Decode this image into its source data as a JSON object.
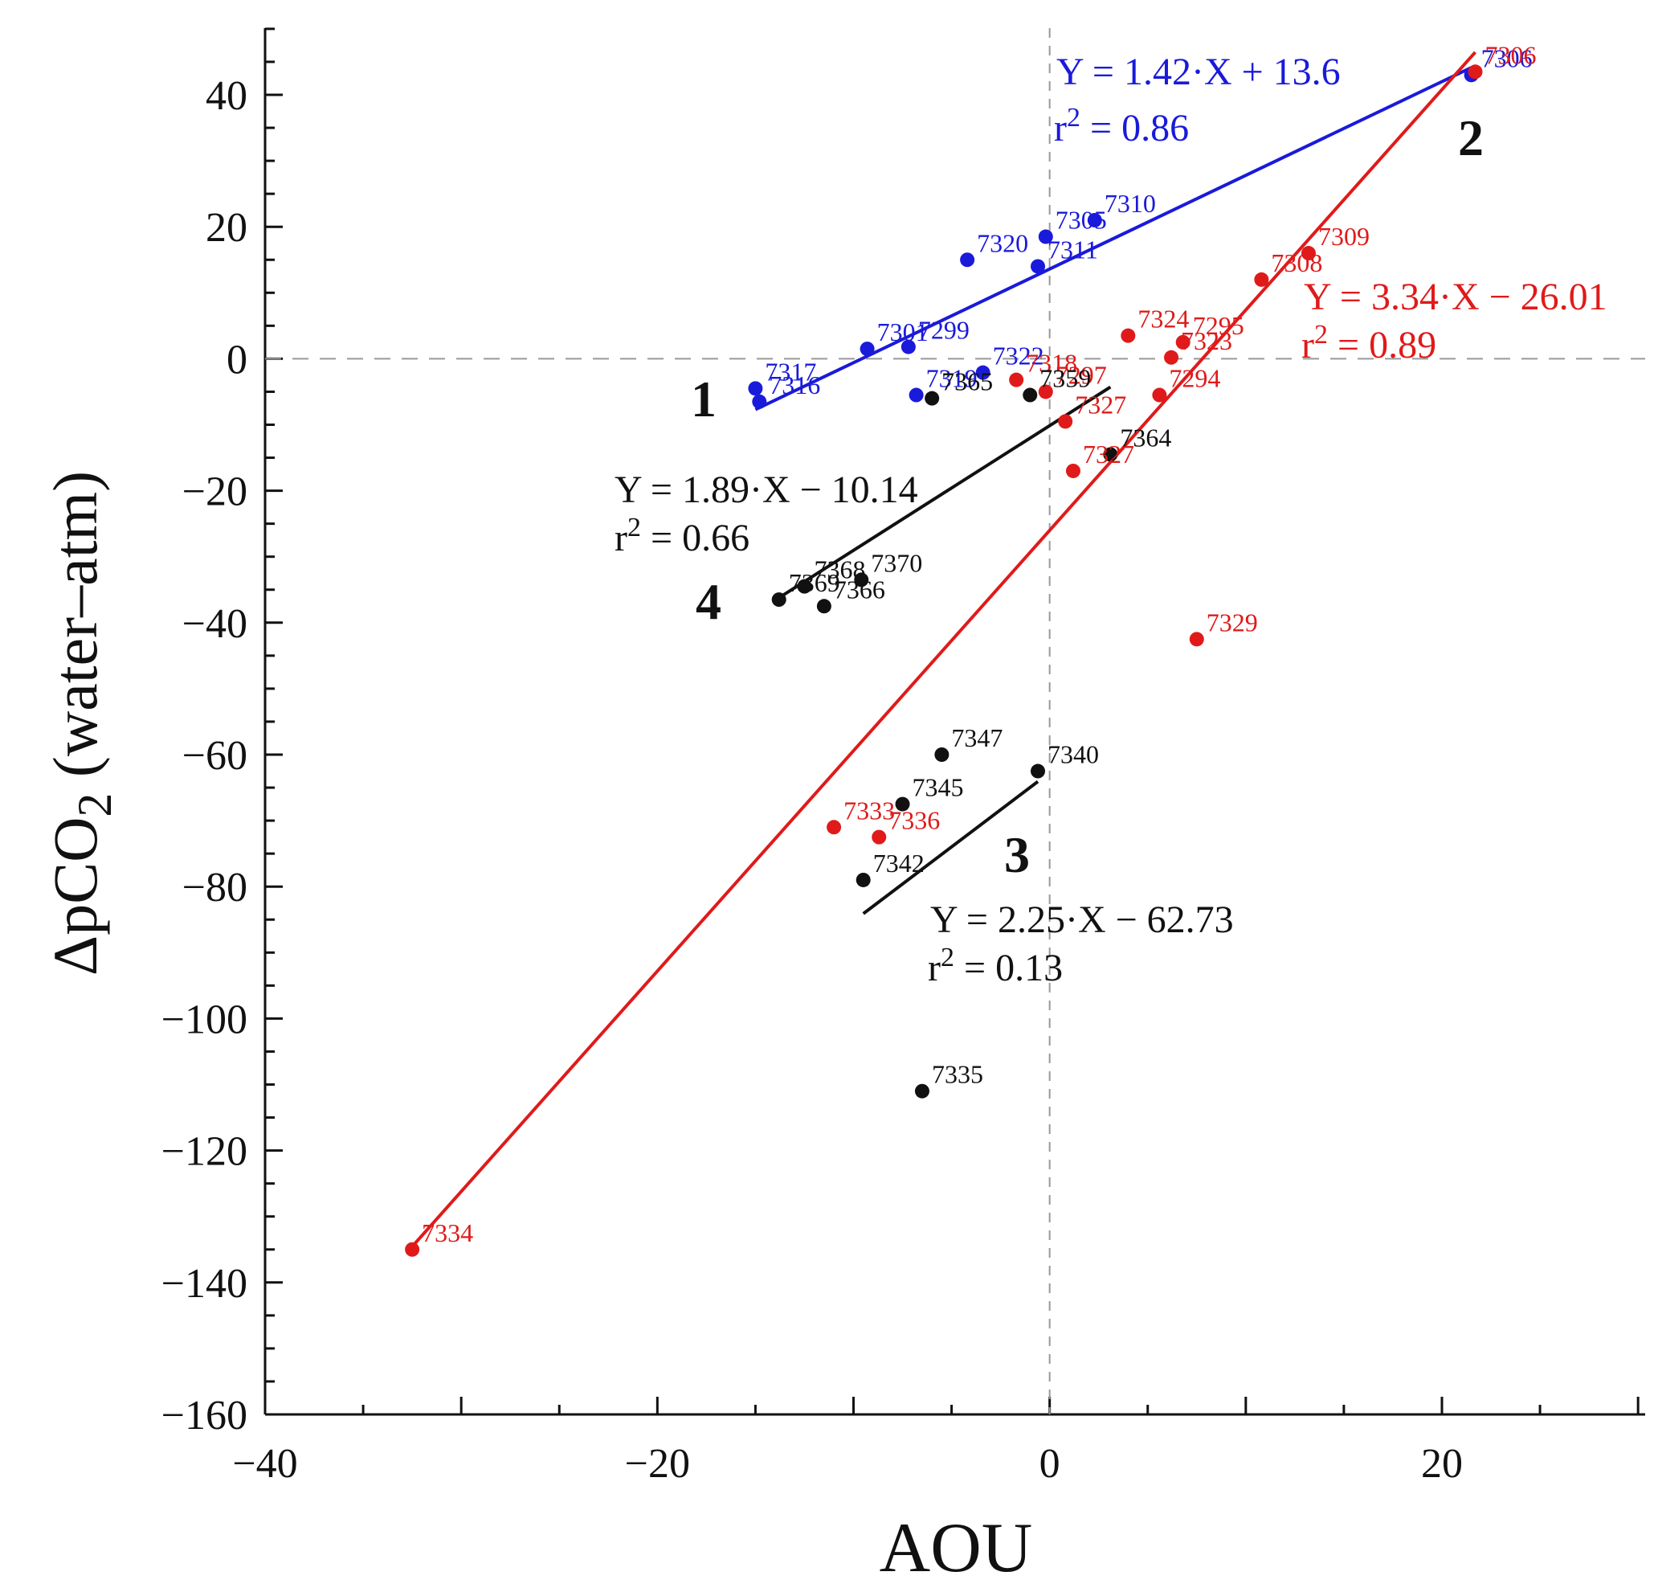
{
  "colors": {
    "blue": "#1a1adb",
    "red": "#e01a1a",
    "black": "#111111",
    "zero_line": "#999999"
  },
  "chart_data": {
    "type": "scatter",
    "title": "",
    "xlabel": "AOU",
    "ylabel_prefix": "ΔpCO",
    "ylabel_sub": "2",
    "ylabel_suffix": " (water–atm)",
    "xlim": [
      -40,
      30
    ],
    "ylim": [
      -160,
      50
    ],
    "x_ticks": [
      -40,
      -20,
      0,
      20
    ],
    "x_tick_labels": [
      "−40",
      "−20",
      "0",
      "20"
    ],
    "y_ticks": [
      40,
      20,
      0,
      -20,
      -40,
      -60,
      -80,
      -100,
      -120,
      -140,
      -160
    ],
    "y_tick_labels": [
      "40",
      "20",
      "0",
      "−20",
      "−40",
      "−60",
      "−80",
      "−100",
      "−120",
      "−140",
      "−160"
    ],
    "zero_lines": {
      "x": 0,
      "y": 0
    },
    "series": [
      {
        "name": "1",
        "color": "blue",
        "points": [
          {
            "x": -15,
            "y": -4.5,
            "label": "7317"
          },
          {
            "x": -14.8,
            "y": -6.5,
            "label": "7316"
          },
          {
            "x": -9.3,
            "y": 1.5,
            "label": "7301"
          },
          {
            "x": -7.2,
            "y": 1.8,
            "label": "7299"
          },
          {
            "x": -6.8,
            "y": -5.5,
            "label": "7319"
          },
          {
            "x": -4.2,
            "y": 15,
            "label": "7320"
          },
          {
            "x": -3.4,
            "y": -2.1,
            "label": "7322"
          },
          {
            "x": -0.6,
            "y": 14,
            "label": "7311"
          },
          {
            "x": -0.2,
            "y": 18.5,
            "label": "7305"
          },
          {
            "x": 2.3,
            "y": 21,
            "label": "7310"
          },
          {
            "x": 21.5,
            "y": 43,
            "label": "7306"
          }
        ],
        "fit": {
          "slope": 1.42,
          "intercept": 13.6,
          "x_range": [
            -15,
            21.5
          ],
          "label": "Y = 1.42·X + 13.6",
          "r2": "0.86"
        }
      },
      {
        "name": "2",
        "color": "red",
        "points": [
          {
            "x": -32.5,
            "y": -135,
            "label": "7334"
          },
          {
            "x": -11,
            "y": -71,
            "label": "7333"
          },
          {
            "x": -8.7,
            "y": -72.5,
            "label": "7336"
          },
          {
            "x": -1.7,
            "y": -3.2,
            "label": "7318"
          },
          {
            "x": -0.2,
            "y": -5,
            "label": "7297"
          },
          {
            "x": 0.8,
            "y": -9.5,
            "label": "7327"
          },
          {
            "x": 1.2,
            "y": -17,
            "label": "7327"
          },
          {
            "x": 4,
            "y": 3.5,
            "label": "7324"
          },
          {
            "x": 5.6,
            "y": -5.5,
            "label": "7294"
          },
          {
            "x": 6.2,
            "y": 0.2,
            "label": "7323"
          },
          {
            "x": 6.8,
            "y": 2.5,
            "label": "7295"
          },
          {
            "x": 7.5,
            "y": -42.5,
            "label": "7329"
          },
          {
            "x": 10.8,
            "y": 12,
            "label": "7308"
          },
          {
            "x": 13.2,
            "y": 16,
            "label": "7309"
          },
          {
            "x": 21.7,
            "y": 43.5,
            "label": "7306"
          }
        ],
        "fit": {
          "slope": 3.34,
          "intercept": -26.01,
          "x_range": [
            -32.5,
            21.7
          ],
          "label": "Y = 3.34·X − 26.01",
          "r2": "0.89"
        }
      },
      {
        "name": "3",
        "color": "black",
        "points": [
          {
            "x": -9.5,
            "y": -79,
            "label": "7342"
          },
          {
            "x": -7.5,
            "y": -67.5,
            "label": "7345"
          },
          {
            "x": -5.5,
            "y": -60,
            "label": "7347"
          },
          {
            "x": -0.6,
            "y": -62.5,
            "label": "7340"
          },
          {
            "x": -6.5,
            "y": -111,
            "label": "7335"
          }
        ],
        "fit": {
          "slope": 2.25,
          "intercept": -62.73,
          "x_range": [
            -9.5,
            -0.6
          ],
          "label": "Y = 2.25·X − 62.73",
          "r2": "0.13"
        }
      },
      {
        "name": "4",
        "color": "black",
        "points": [
          {
            "x": -13.8,
            "y": -36.5,
            "label": "7369"
          },
          {
            "x": -12.5,
            "y": -34.5,
            "label": "7368"
          },
          {
            "x": -11.5,
            "y": -37.5,
            "label": "7366"
          },
          {
            "x": -9.6,
            "y": -33.5,
            "label": "7370"
          },
          {
            "x": -6,
            "y": -6,
            "label": "7365"
          },
          {
            "x": -1,
            "y": -5.5,
            "label": "7359"
          },
          {
            "x": 3.1,
            "y": -14.5,
            "label": "7364"
          }
        ],
        "fit": {
          "slope": 1.89,
          "intercept": -10.14,
          "x_range": [
            -13.8,
            3.1
          ],
          "label": "Y = 1.89·X − 10.14",
          "r2": "0.66"
        }
      }
    ]
  }
}
